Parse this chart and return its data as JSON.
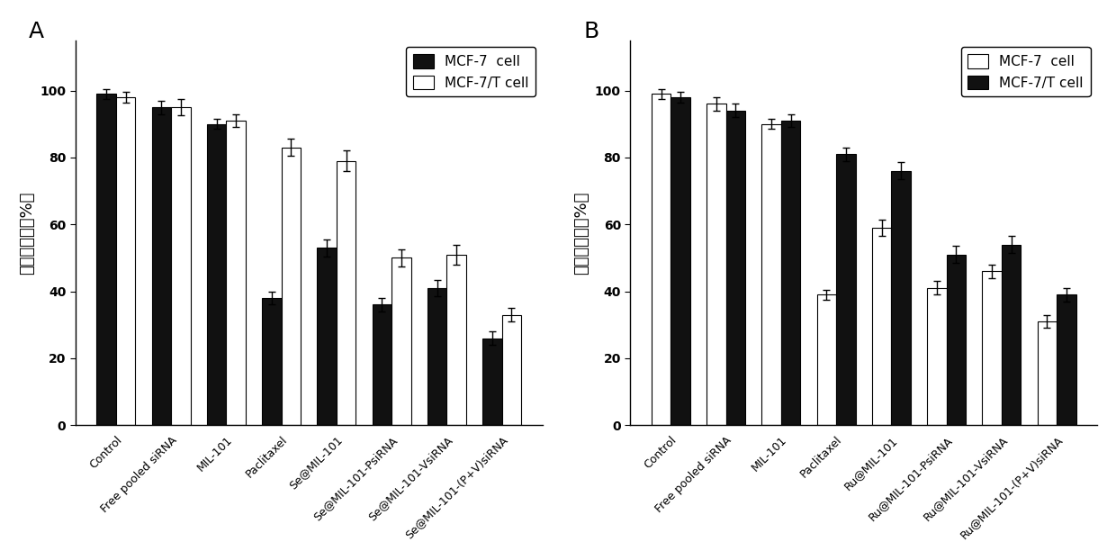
{
  "panel_A": {
    "categories": [
      "Control",
      "Free pooled siRNA",
      "MIL-101",
      "Paclitaxel",
      "Se@MIL-101",
      "Se@MIL-101-PsiRNA",
      "Se@MIL-101-VsiRNA",
      "Se@MIL-101-(P+V)siRNA"
    ],
    "mcf7_values": [
      99,
      95,
      90,
      38,
      53,
      36,
      41,
      26
    ],
    "mcf7t_values": [
      98,
      95,
      91,
      83,
      79,
      50,
      51,
      33
    ],
    "mcf7_errors": [
      1.5,
      2.0,
      1.5,
      2.0,
      2.5,
      2.0,
      2.5,
      2.0
    ],
    "mcf7t_errors": [
      1.5,
      2.5,
      2.0,
      2.5,
      3.0,
      2.5,
      3.0,
      2.0
    ],
    "ylabel": "细胞存活率（%）",
    "panel_label": "A",
    "mcf7_first_in_legend": true,
    "mcf7_color": "#111111",
    "mcf7t_color": "#ffffff"
  },
  "panel_B": {
    "categories": [
      "Control",
      "Free pooled siRNA",
      "MIL-101",
      "Paclitaxel",
      "Ru@MIL-101",
      "Ru@MIL-101-PsiRNA",
      "Ru@MIL-101-VsiRNA",
      "Ru@MIL-101-(P+V)siRNA"
    ],
    "mcf7_values": [
      99,
      96,
      90,
      39,
      59,
      41,
      46,
      31
    ],
    "mcf7t_values": [
      98,
      94,
      91,
      81,
      76,
      51,
      54,
      39
    ],
    "mcf7_errors": [
      1.5,
      2.0,
      1.5,
      1.5,
      2.5,
      2.0,
      2.0,
      2.0
    ],
    "mcf7t_errors": [
      1.5,
      2.0,
      2.0,
      2.0,
      2.5,
      2.5,
      2.5,
      2.0
    ],
    "ylabel": "细胞存活率（%）",
    "panel_label": "B",
    "mcf7_first_in_legend": true,
    "mcf7_color": "#ffffff",
    "mcf7t_color": "#111111"
  },
  "bar_width": 0.35,
  "ylim": [
    0,
    115
  ],
  "yticks": [
    0,
    20,
    40,
    60,
    80,
    100
  ],
  "edge_color": "#000000",
  "legend_mcf7_label": "MCF-7  cell",
  "legend_mcf7t_label": "MCF-7/T cell",
  "fontsize_tick": 10,
  "fontsize_ylabel": 13,
  "fontsize_panel": 18,
  "fontsize_legend": 11
}
